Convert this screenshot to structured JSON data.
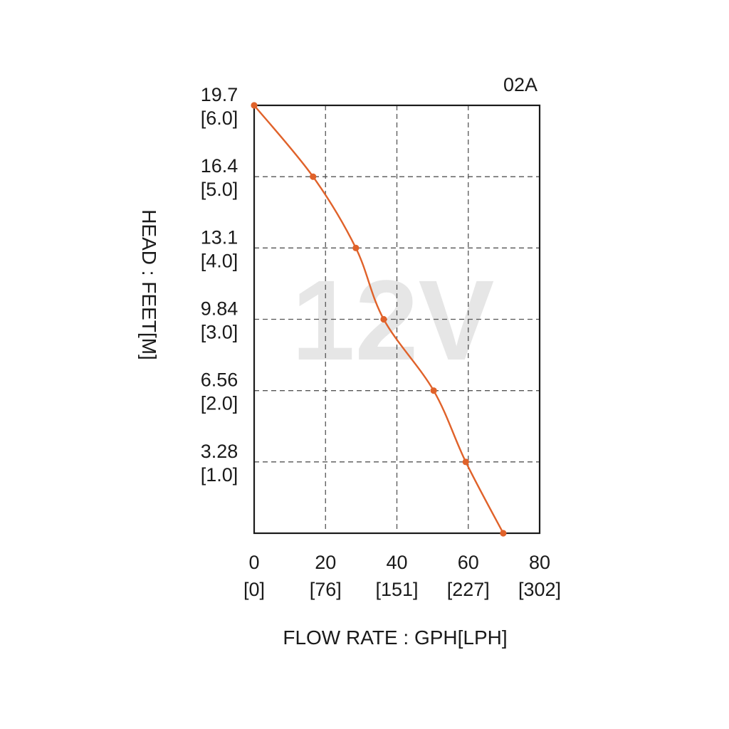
{
  "chart_data": {
    "type": "line",
    "model_label": "02A",
    "watermark": "12V",
    "xlabel": "FLOW RATE : GPH[LPH]",
    "ylabel": "HEAD : FEET[M]",
    "xlim": [
      0,
      80
    ],
    "ylim": [
      0,
      6.0
    ],
    "grid": true,
    "x_ticks": [
      {
        "value": 0,
        "label": "0",
        "sublabel": "[0]"
      },
      {
        "value": 20,
        "label": "20",
        "sublabel": "[76]"
      },
      {
        "value": 40,
        "label": "40",
        "sublabel": "[151]"
      },
      {
        "value": 60,
        "label": "60",
        "sublabel": "[227]"
      },
      {
        "value": 80,
        "label": "80",
        "sublabel": "[302]"
      }
    ],
    "y_ticks": [
      {
        "value": 6.0,
        "label": "19.7",
        "sublabel": "[6.0]"
      },
      {
        "value": 5.0,
        "label": "16.4",
        "sublabel": "[5.0]"
      },
      {
        "value": 4.0,
        "label": "13.1",
        "sublabel": "[4.0]"
      },
      {
        "value": 3.0,
        "label": "9.84",
        "sublabel": "[3.0]"
      },
      {
        "value": 2.0,
        "label": "6.56",
        "sublabel": "[2.0]"
      },
      {
        "value": 1.0,
        "label": "3.28",
        "sublabel": "[1.0]"
      }
    ],
    "series": [
      {
        "color": "#e0622a",
        "points": [
          {
            "x": 0,
            "y": 6.0
          },
          {
            "x": 16.5,
            "y": 5.0
          },
          {
            "x": 28.5,
            "y": 4.0
          },
          {
            "x": 36.3,
            "y": 3.0
          },
          {
            "x": 50.3,
            "y": 2.0
          },
          {
            "x": 59.3,
            "y": 1.0
          },
          {
            "x": 69.8,
            "y": 0
          }
        ]
      }
    ]
  }
}
